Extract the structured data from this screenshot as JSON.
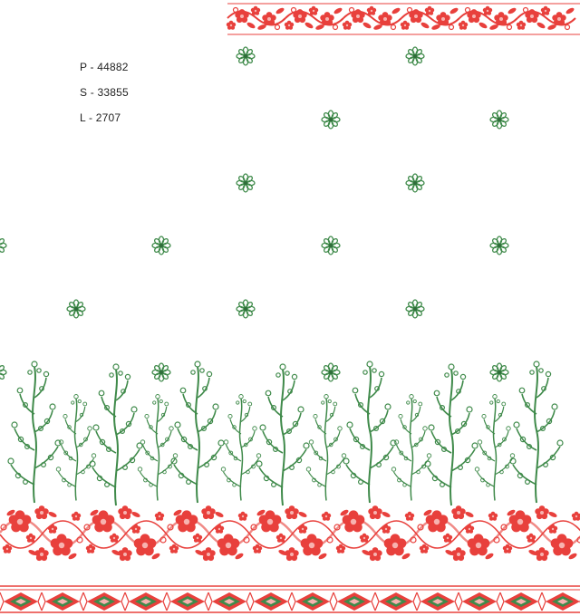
{
  "design_codes": {
    "p": "P - 44882",
    "s": "S - 33855",
    "l": "L - 2707"
  },
  "colors": {
    "background": "#ffffff",
    "flower_red": "#e8403c",
    "flower_red_dark": "#c92a26",
    "flower_pink": "#f08a86",
    "leaf_green": "#3f8a4a",
    "leaf_green_dark": "#2f6e3a"
  },
  "motifs": {
    "top_border": "red-floral-scroll-band",
    "scattered": "green-rosette-buti",
    "bottom_vines": "green-fern-vines",
    "bottom_border": "red-floral-paisley-band",
    "edge_border": "diamond-lattice-border"
  }
}
